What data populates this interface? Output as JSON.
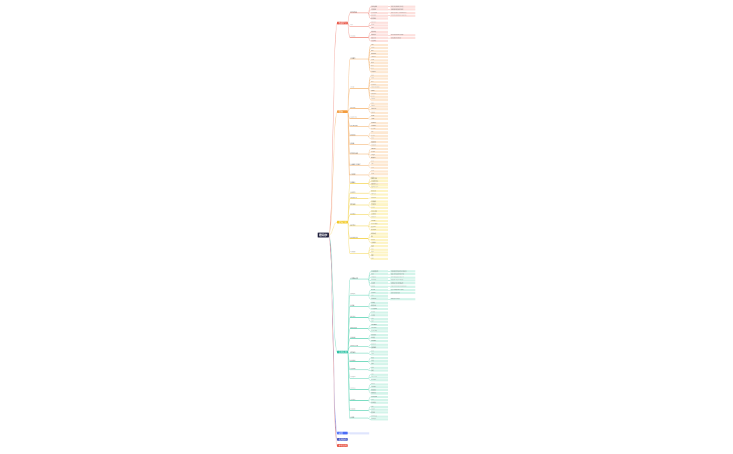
{
  "root_label": "密码学",
  "branches": [
    {
      "label": "数据安全",
      "color": "#e74c3c",
      "light": "#fde0dd",
      "line": "#f08a7e",
      "subs": [
        {
          "label": "密码学基础",
          "leaves": [
            "加密与解密",
            "对称加密",
            "非对称加密",
            "散列函数",
            "数字签名"
          ],
          "details": [
            "将明文转换成密文的过程",
            "加密和解密使用相同密钥",
            "使用公钥加密、私钥解密的算法",
            "将任意长度数据映射为固定长度",
            ""
          ]
        },
        {
          "label": "协议",
          "leaves": [
            "SSL/TLS",
            "IPSec",
            "SSH"
          ],
          "details": []
        },
        {
          "label": "应用场景",
          "leaves": [
            "数据传输",
            "数据存储",
            "身份认证",
            "访问控制"
          ],
          "details": [
            "",
            "保护存储在磁盘上的数据",
            "验证通信双方的身份",
            ""
          ]
        }
      ]
    },
    {
      "label": "算法",
      "color": "#f39c3d",
      "light": "#fde8d2",
      "line": "#f5b878",
      "subs": [
        {
          "label": "对称算法",
          "leaves": [
            "DES",
            "3DES",
            "AES",
            "Blowfish",
            "Twofish",
            "IDEA",
            "RC4",
            "RC5",
            "RC6",
            "Serpent"
          ],
          "details": []
        },
        {
          "label": "非对称",
          "leaves": [
            "RSA",
            "DSA",
            "ECC",
            "ElGamal",
            "Diffie-Hellman",
            "Rabin",
            "McEliece",
            "NTRU",
            "Paillier"
          ],
          "details": []
        },
        {
          "label": "散列函数",
          "leaves": [
            "MD5",
            "SHA-1",
            "SHA-256",
            "SHA-3"
          ],
          "details": []
        },
        {
          "label": "消息认证码",
          "leaves": [
            "HMAC",
            "CMAC"
          ],
          "details": []
        },
        {
          "label": "数字签名算法",
          "leaves": [
            "RSA签名",
            "DSA签名",
            "ECDSA"
          ],
          "details": []
        },
        {
          "label": "密钥交换",
          "leaves": [
            "DH",
            "ECDH",
            "MQV"
          ],
          "details": []
        },
        {
          "label": "随机数",
          "leaves": [
            "真随机数",
            "伪随机数"
          ],
          "details": []
        },
        {
          "label": "密钥派生函数",
          "leaves": [
            "PBKDF2",
            "bcrypt",
            "scrypt",
            "Argon2"
          ],
          "details": []
        },
        {
          "label": "分组密码工作模式",
          "leaves": [
            "ECB",
            "CBC",
            "CTR"
          ],
          "details": []
        },
        {
          "label": "认证加密",
          "leaves": [
            "GCM",
            "CCM",
            "OCB"
          ],
          "details": []
        },
        {
          "label": "后量子",
          "leaves": [
            "格密码",
            "编码密码"
          ],
          "details": []
        }
      ]
    },
    {
      "label": "密码分析",
      "color": "#f1c40f",
      "light": "#fdf4c4",
      "line": "#f5d75a",
      "subs": [
        {
          "label": "攻击类型",
          "leaves": [
            "唯密文攻击",
            "已知明文攻击",
            "选择明文攻击",
            "选择密文攻击"
          ],
          "details": []
        },
        {
          "label": "分析方法",
          "leaves": [
            "差分分析",
            "线性分析"
          ],
          "details": []
        },
        {
          "label": "侧信道攻击",
          "leaves": [
            "时序攻击"
          ],
          "details": []
        },
        {
          "label": "暴力破解",
          "leaves": [
            "穷举搜索",
            "字典攻击",
            "彩虹表"
          ],
          "details": []
        },
        {
          "label": "协议攻击",
          "leaves": [
            "中间人攻击",
            "重放攻击",
            "降级攻击"
          ],
          "details": []
        },
        {
          "label": "量子攻击",
          "leaves": [
            "Shor算法",
            "Grover算法",
            "量子退火",
            "量子模拟"
          ],
          "details": []
        },
        {
          "label": "密码强度评估",
          "leaves": [
            "密钥长度",
            "熵",
            "复杂度",
            "计算成本"
          ],
          "details": []
        },
        {
          "label": "防御措施",
          "leaves": [
            "加盐",
            "迭代",
            "填充",
            "掩码",
            "混淆"
          ],
          "details": []
        }
      ]
    },
    {
      "label": "应用实践",
      "color": "#1abc9c",
      "light": "#d3f4ea",
      "line": "#6fd9bd",
      "subs": [
        {
          "label": "公钥基础设施",
          "leaves": [
            "证书颁发机构",
            "证书",
            "注册机构",
            "证书吊销",
            "证书库",
            "信任链"
          ],
          "details": [
            "负责签发和管理数字证书的机构",
            "绑定公钥与身份的电子文档",
            "验证申请者身份后转交CA",
            "将失效证书列入吊销列表",
            "存储和分发证书的数据库",
            "从根证书到终端证书的验证路径"
          ]
        },
        {
          "label": "安全协议",
          "leaves": [
            "HTTPS",
            "S/MIME",
            "PGP",
            "Kerberos"
          ],
          "details": [
            "基于TLS的安全HTTP协议",
            "安全电子邮件标准",
            "",
            "网络身份认证协议"
          ]
        },
        {
          "label": "区块链",
          "leaves": [
            "哈希链",
            "默克尔树",
            "工作量证明"
          ],
          "details": []
        },
        {
          "label": "数字货币",
          "leaves": [
            "比特币",
            "以太坊",
            "钱包",
            "地址"
          ],
          "details": []
        },
        {
          "label": "零知识证明",
          "leaves": [
            "zk-SNARK",
            "zk-STARK",
            "交互式证明"
          ],
          "details": []
        },
        {
          "label": "同态加密",
          "leaves": [
            "部分同态",
            "全同态",
            "应用场景"
          ],
          "details": []
        },
        {
          "label": "安全多方计算",
          "leaves": [
            "秘密共享",
            "混淆电路"
          ],
          "details": []
        },
        {
          "label": "硬件安全",
          "leaves": [
            "HSM",
            "TPM"
          ],
          "details": []
        },
        {
          "label": "密钥管理",
          "leaves": [
            "生成",
            "分发",
            "存储"
          ],
          "details": []
        },
        {
          "label": "访问控制",
          "leaves": [
            "认证",
            "授权"
          ],
          "details": []
        },
        {
          "label": "合规标准",
          "leaves": [
            "FIPS",
            "ISO 27001",
            "PCI DSS"
          ],
          "details": []
        },
        {
          "label": "安全开发",
          "leaves": [
            "密码库",
            "代码审计",
            "渗透测试",
            "漏洞管理"
          ],
          "details": []
        },
        {
          "label": "加密通信",
          "leaves": [
            "端到端加密",
            "VPN",
            "安全消息"
          ],
          "details": []
        },
        {
          "label": "数据脱敏",
          "leaves": [
            "掩码",
            "令牌化",
            "假名化"
          ],
          "details": []
        },
        {
          "label": "云安全",
          "leaves": [
            "云密钥管理",
            "加密存储"
          ],
          "details": []
        }
      ]
    },
    {
      "label": "总结",
      "color": "#4a6cf7",
      "light": "#dfe5fd",
      "line": "#8ea2f9",
      "subs": [
        {
          "label": "",
          "leaves": [],
          "details": []
        }
      ]
    },
    {
      "label": "发展趋势",
      "color": "#3b4cc0",
      "light": "#dfe2f6",
      "line": "#7b86d8",
      "subs": []
    },
    {
      "label": "参考资料",
      "color": "#e74c3c",
      "light": "#fde0dd",
      "line": "#f08a7e",
      "subs": []
    }
  ]
}
